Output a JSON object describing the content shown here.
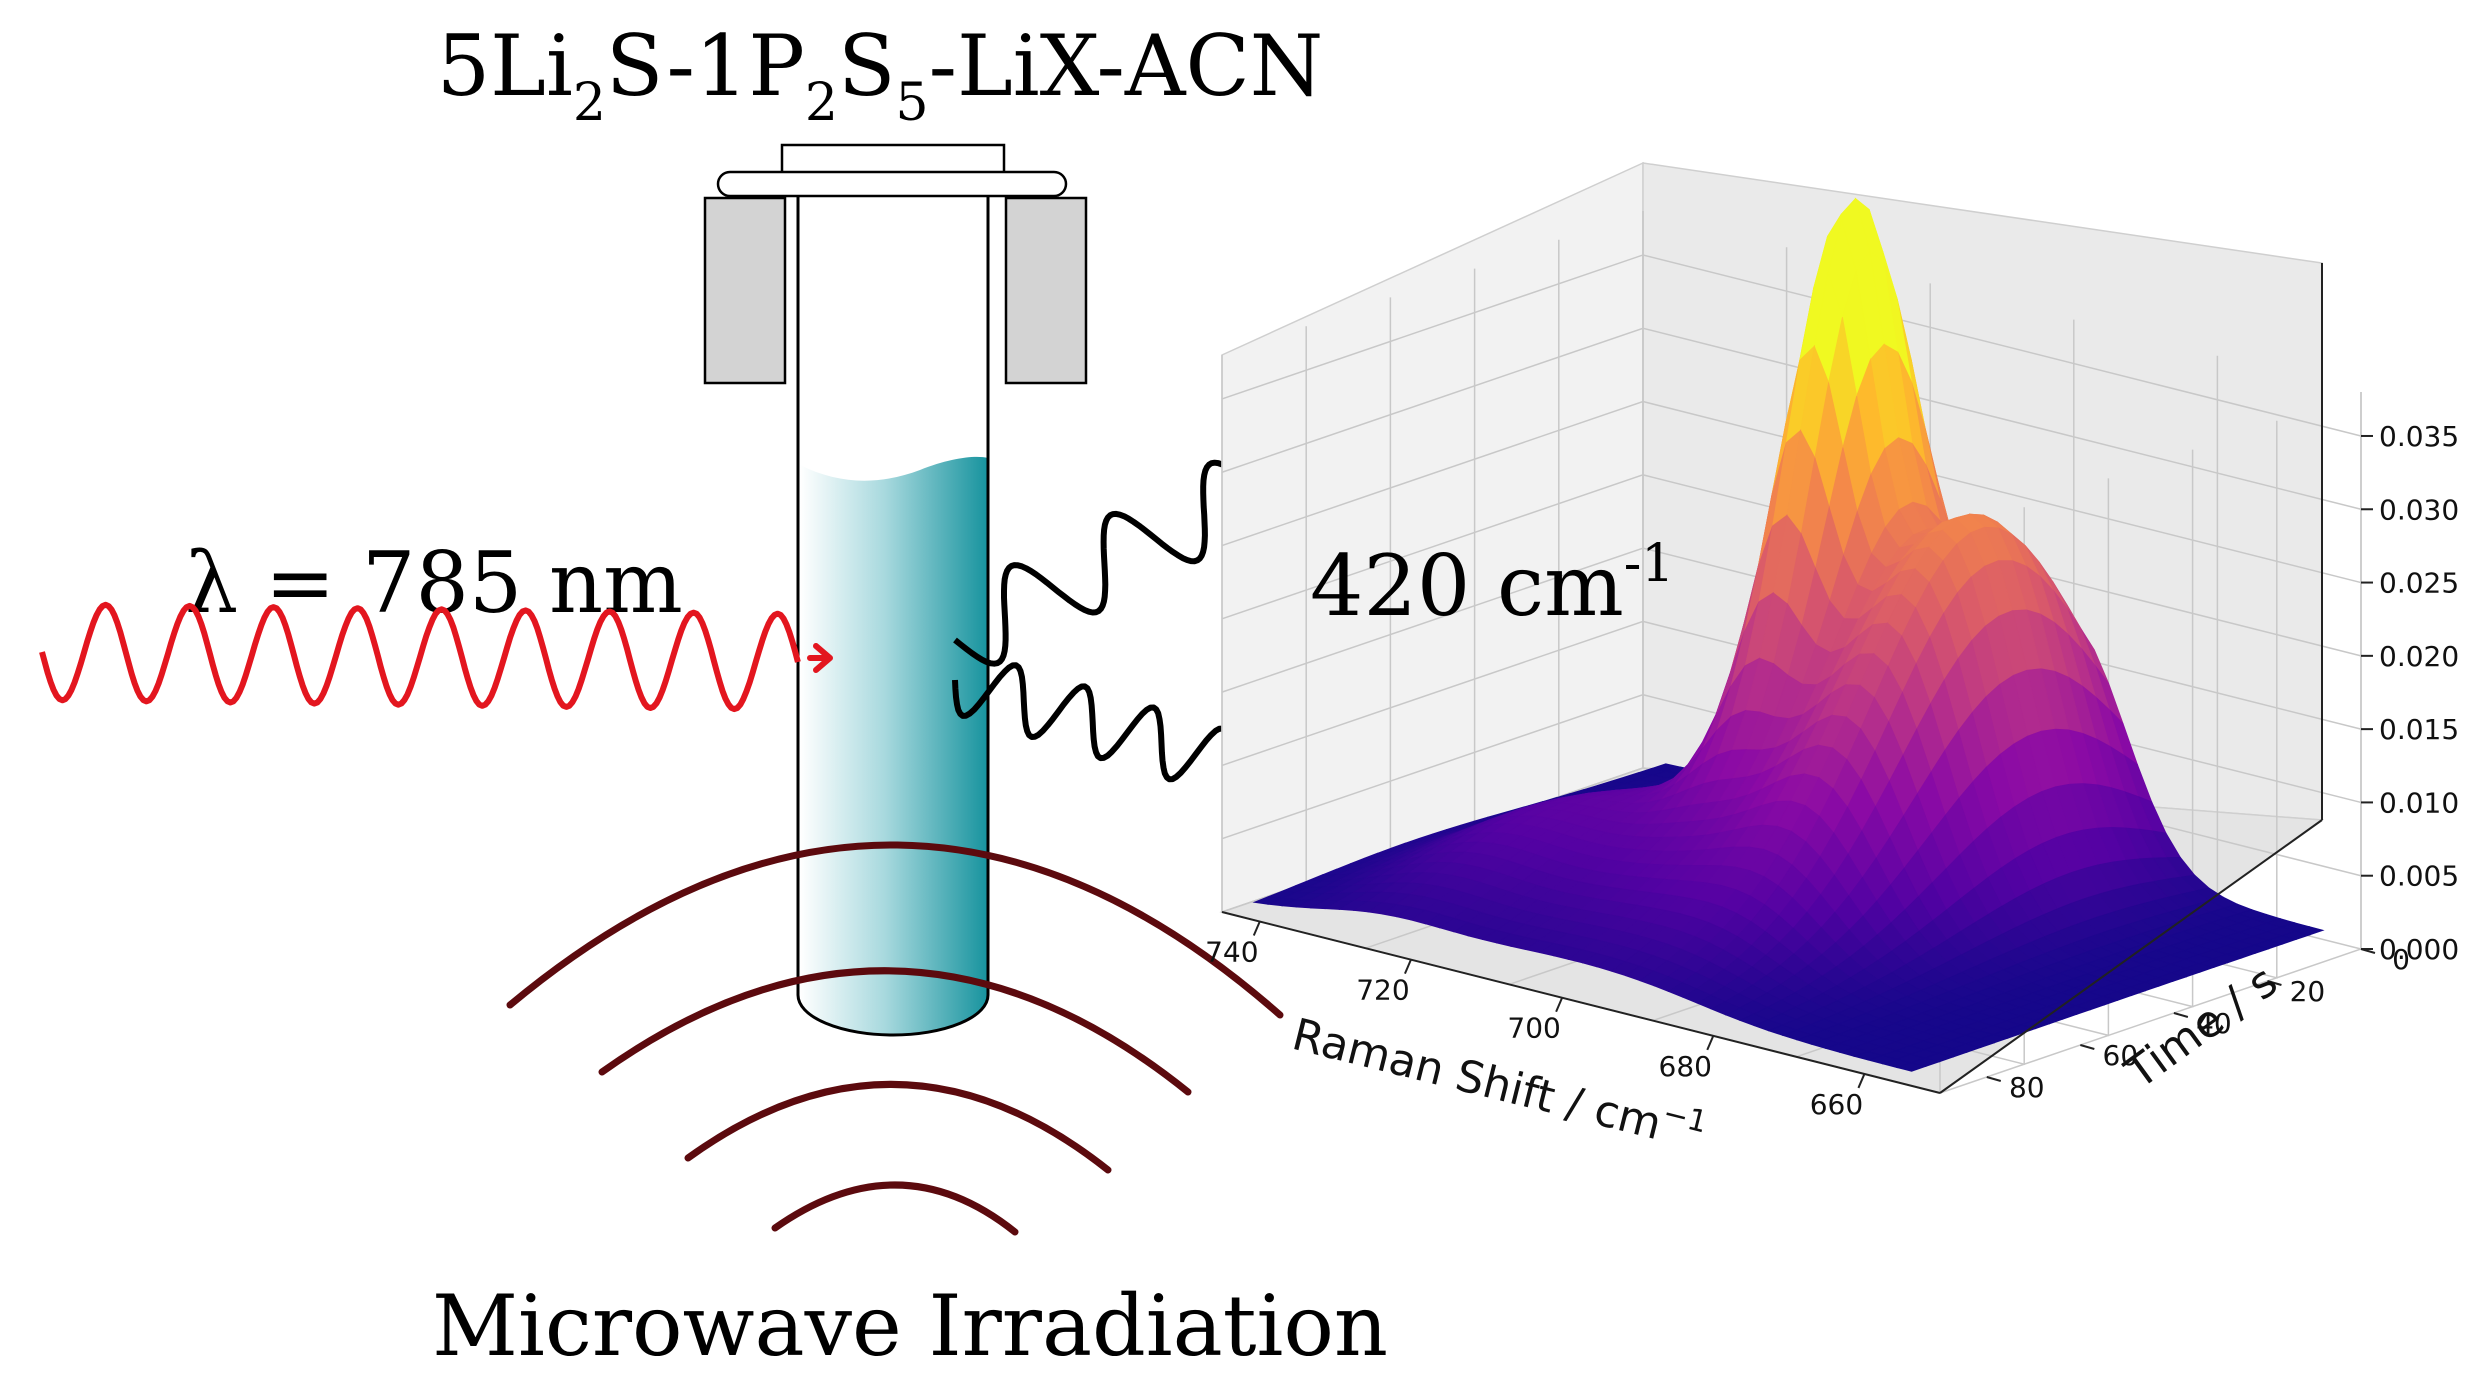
{
  "title": {
    "prefix": "5Li",
    "sub1": "2",
    "mid1": "S-1P",
    "sub2": "2",
    "mid2": "S",
    "sub3": "5",
    "suffix": "-LiX-ACN"
  },
  "laser_label": "λ = 785 nm",
  "microwave_label": "Microwave Irradiation",
  "peak_label": {
    "text": "420 cm",
    "sup": "-1"
  },
  "colors": {
    "laser": "#e3161f",
    "microwave": "#5c0a0e",
    "scattered": "#000000",
    "liquid_dark": "#17939e",
    "liquid_light": "#ffffff",
    "clamp": "#d3d3d3"
  },
  "chart_data": {
    "type": "surface3d",
    "xlabel": "Raman Shift / cm",
    "xlabel_sup": "−1",
    "ylabel": "Time / s",
    "x_ticks": [
      "740",
      "720",
      "700",
      "680",
      "660"
    ],
    "y_ticks": [
      "0",
      "20",
      "40",
      "60",
      "80"
    ],
    "z_ticks": [
      "0.000",
      "0.005",
      "0.010",
      "0.015",
      "0.020",
      "0.025",
      "0.030",
      "0.035"
    ],
    "xlim": [
      745,
      650
    ],
    "ylim": [
      0,
      90
    ],
    "zlim": [
      0,
      0.038
    ],
    "colormap": "plasma",
    "grid": true,
    "peaks": [
      {
        "raman_shift": 705,
        "time": 20,
        "intensity": 0.038
      },
      {
        "raman_shift": 688,
        "time": 20,
        "intensity": 0.021
      },
      {
        "raman_shift": 725,
        "time": 55,
        "intensity": 0.004
      }
    ]
  }
}
